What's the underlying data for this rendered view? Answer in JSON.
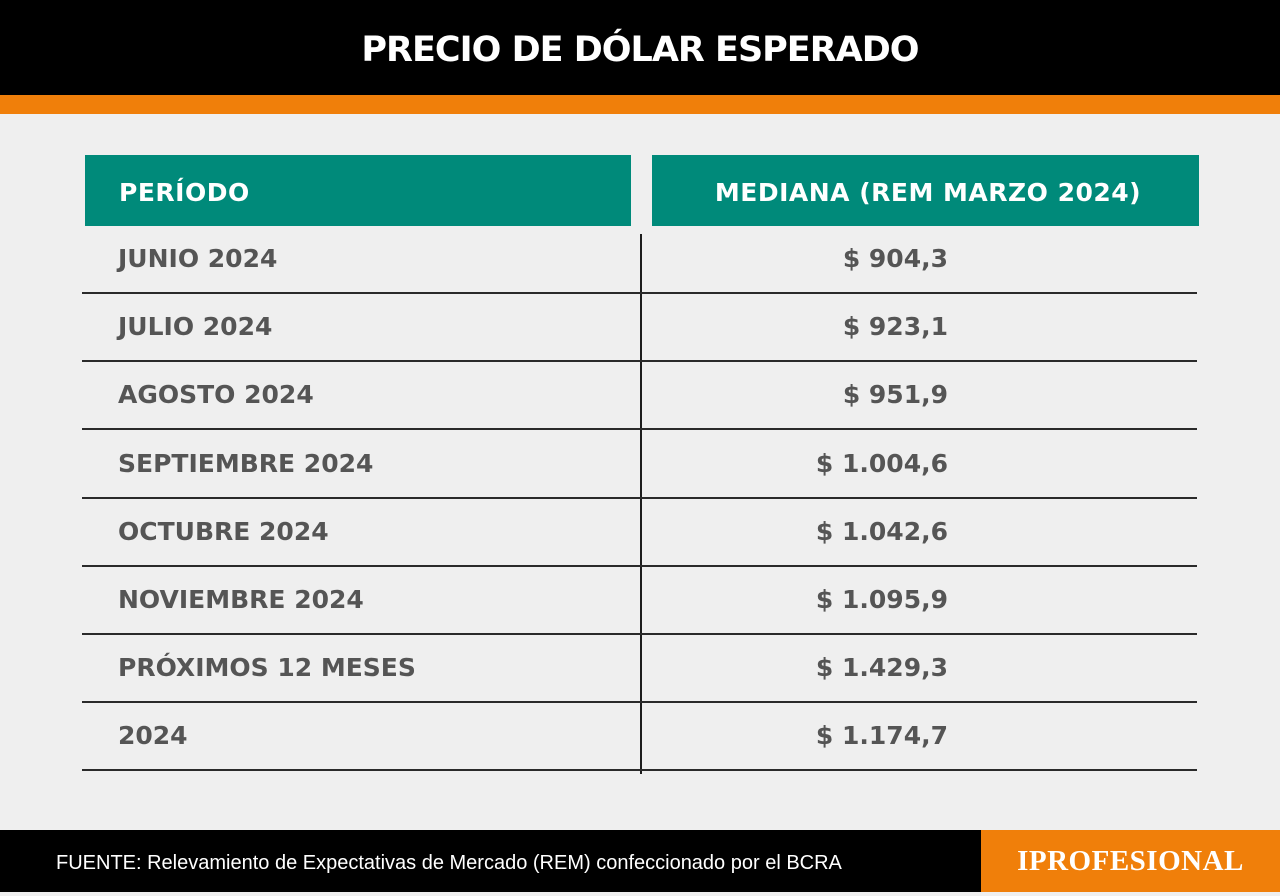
{
  "title": "PRECIO DE DÓLAR ESPERADO",
  "colors": {
    "header_bg": "#000000",
    "accent": "#f07f0a",
    "table_header": "#008a7a",
    "text": "#555555",
    "background": "#efefef"
  },
  "table": {
    "columns": [
      "PERÍODO",
      "MEDIANA (REM MARZO 2024)"
    ],
    "rows": [
      {
        "period": "JUNIO 2024",
        "value": "$ 904,3"
      },
      {
        "period": "JULIO 2024",
        "value": "$ 923,1"
      },
      {
        "period": "AGOSTO 2024",
        "value": "$ 951,9"
      },
      {
        "period": "SEPTIEMBRE 2024",
        "value": "$ 1.004,6"
      },
      {
        "period": "OCTUBRE 2024",
        "value": "$ 1.042,6"
      },
      {
        "period": "NOVIEMBRE 2024",
        "value": "$ 1.095,9"
      },
      {
        "period": "PRÓXIMOS 12 MESES",
        "value": "$ 1.429,3"
      },
      {
        "period": "2024",
        "value": "$ 1.174,7"
      }
    ]
  },
  "chart_data": {
    "type": "table",
    "title": "PRECIO DE DÓLAR ESPERADO",
    "columns": [
      "PERÍODO",
      "MEDIANA (REM MARZO 2024)"
    ],
    "categories": [
      "JUNIO 2024",
      "JULIO 2024",
      "AGOSTO 2024",
      "SEPTIEMBRE 2024",
      "OCTUBRE 2024",
      "NOVIEMBRE 2024",
      "PRÓXIMOS 12 MESES",
      "2024"
    ],
    "values": [
      904.3,
      923.1,
      951.9,
      1004.6,
      1042.6,
      1095.9,
      1429.3,
      1174.7
    ]
  },
  "footer": {
    "source": "FUENTE: Relevamiento de Expectativas de Mercado (REM) confeccionado por el BCRA",
    "brand": "IPROFESIONAL"
  }
}
